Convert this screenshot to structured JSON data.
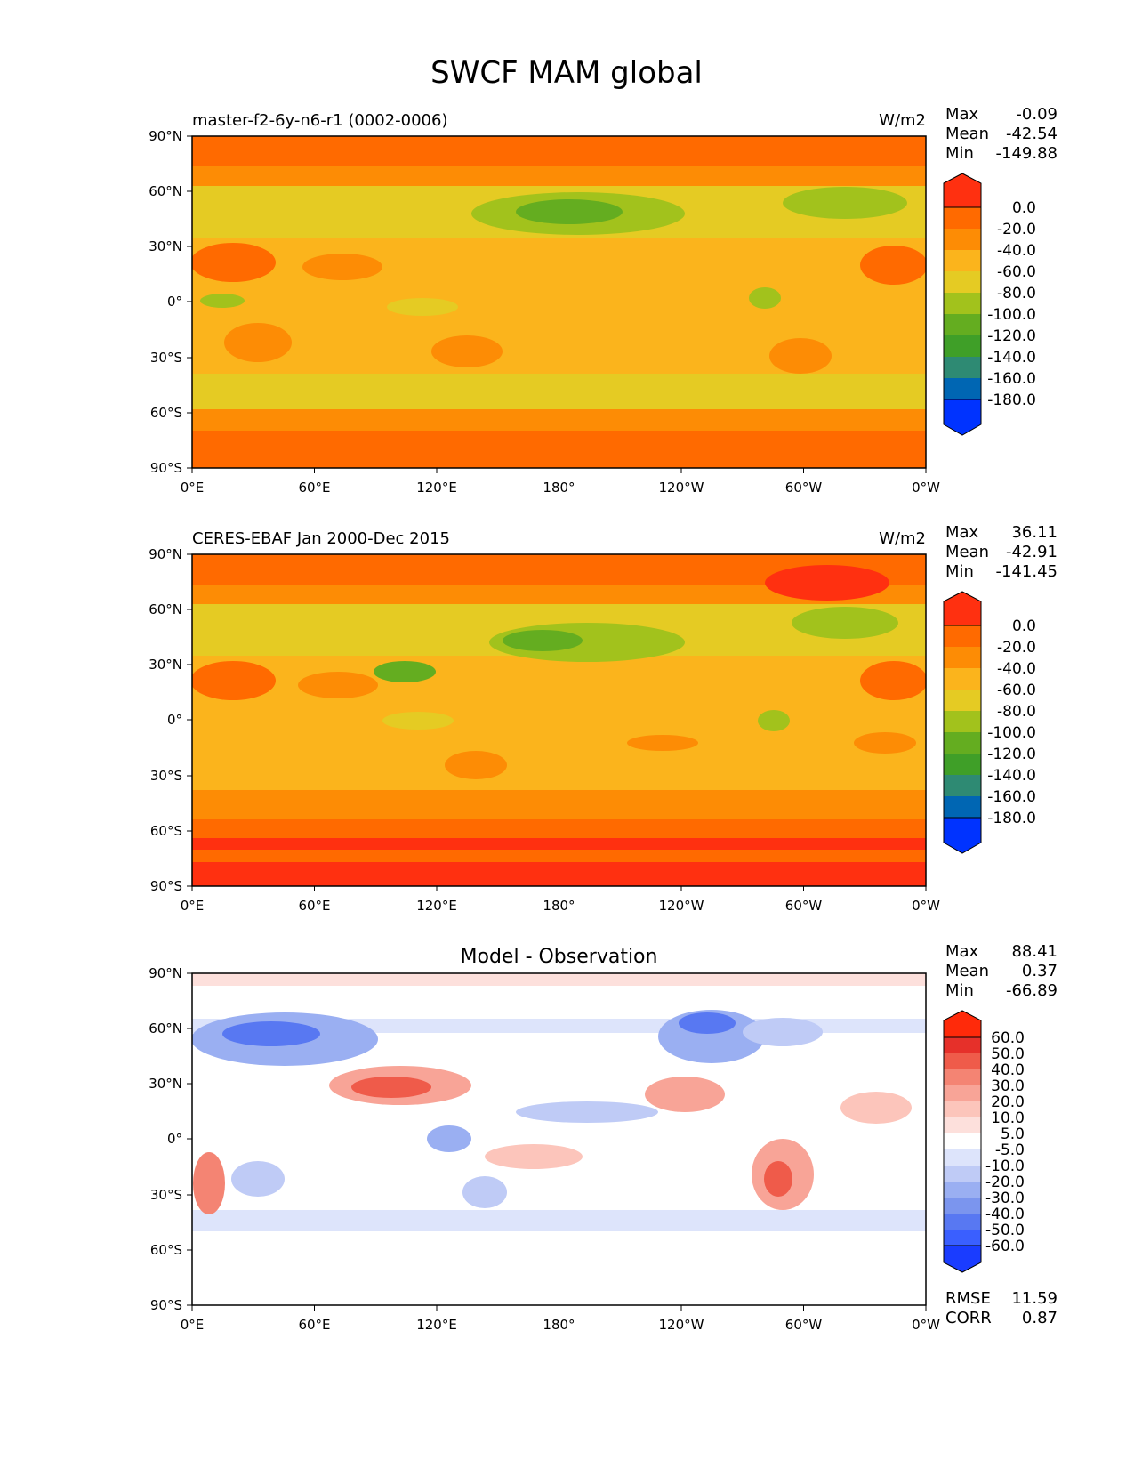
{
  "title": "SWCF MAM global",
  "colors": {
    "sequential": [
      "#0033ff",
      "#0066b3",
      "#2e8a73",
      "#3f9f28",
      "#64ad20",
      "#a2c21c",
      "#e5cb23",
      "#fbb41c",
      "#fd8c05",
      "#ff6a00",
      "#ff3010"
    ],
    "diverging": [
      "#1a3cff",
      "#3a5fff",
      "#5878f2",
      "#7b95ee",
      "#9aaff2",
      "#bfcbf6",
      "#dde4fb",
      "#ffffff",
      "#fde0dc",
      "#fcc5bb",
      "#f8a497",
      "#f48473",
      "#ef5b4a",
      "#e6302a",
      "#ff2a0a"
    ]
  },
  "panels": [
    {
      "id": "model",
      "left_title": "master-f2-6y-n6-r1 (0002-0006)",
      "center_title": "",
      "units": "W/m2",
      "stats": [
        {
          "label": "Max",
          "value": "-0.09"
        },
        {
          "label": "Mean",
          "value": "-42.54"
        },
        {
          "label": "Min",
          "value": "-149.88"
        }
      ],
      "colorbar_labels": [
        "0.0",
        "-20.0",
        "-40.0",
        "-60.0",
        "-80.0",
        "-100.0",
        "-120.0",
        "-140.0",
        "-160.0",
        "-180.0"
      ]
    },
    {
      "id": "obs",
      "left_title": "CERES-EBAF Jan 2000-Dec 2015",
      "center_title": "",
      "units": "W/m2",
      "stats": [
        {
          "label": "Max",
          "value": "36.11"
        },
        {
          "label": "Mean",
          "value": "-42.91"
        },
        {
          "label": "Min",
          "value": "-141.45"
        }
      ],
      "colorbar_labels": [
        "0.0",
        "-20.0",
        "-40.0",
        "-60.0",
        "-80.0",
        "-100.0",
        "-120.0",
        "-140.0",
        "-160.0",
        "-180.0"
      ]
    },
    {
      "id": "diff",
      "left_title": "",
      "center_title": "Model - Observation",
      "units": "",
      "stats": [
        {
          "label": "Max",
          "value": "88.41"
        },
        {
          "label": "Mean",
          "value": "0.37"
        },
        {
          "label": "Min",
          "value": "-66.89"
        }
      ],
      "colorbar_labels": [
        "60.0",
        "50.0",
        "40.0",
        "30.0",
        "20.0",
        "10.0",
        "5.0",
        "-5.0",
        "-10.0",
        "-20.0",
        "-30.0",
        "-40.0",
        "-50.0",
        "-60.0"
      ],
      "extra_stats": [
        {
          "label": "RMSE",
          "value": "11.59"
        },
        {
          "label": "CORR",
          "value": "0.87"
        }
      ]
    }
  ],
  "axes": {
    "lat_ticks": [
      "90°N",
      "60°N",
      "30°N",
      "0°",
      "30°S",
      "60°S",
      "90°S"
    ],
    "lon_ticks": [
      "0°E",
      "60°E",
      "120°E",
      "180°",
      "120°W",
      "60°W",
      "0°W"
    ]
  }
}
